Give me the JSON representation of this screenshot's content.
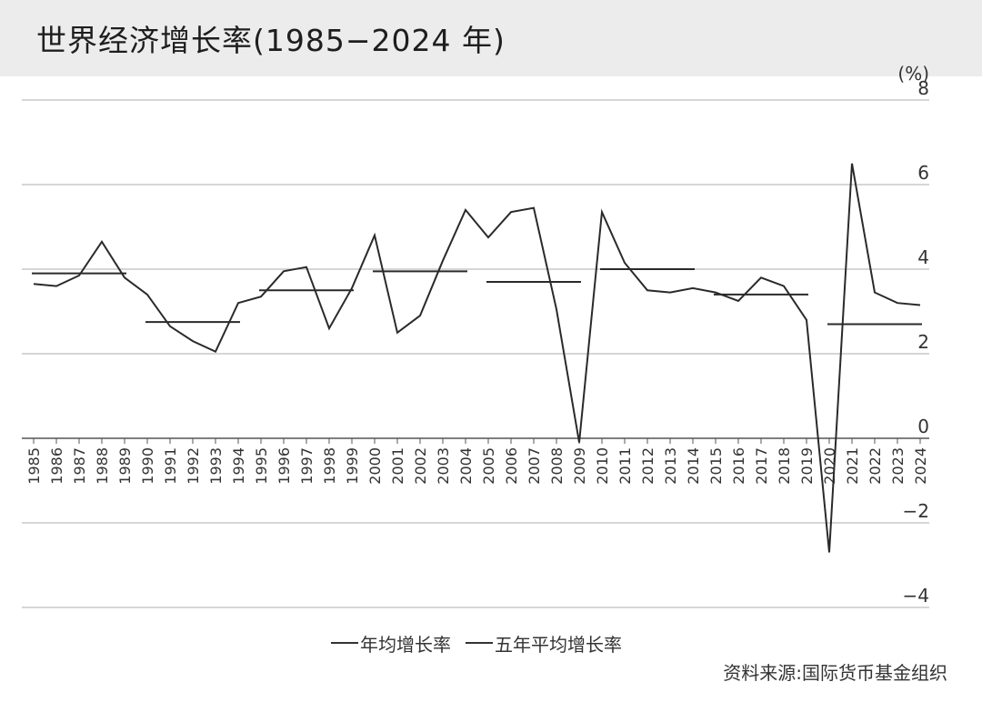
{
  "title": "世界经济增长率(1985−2024 年)",
  "unit": "(%)",
  "source": "资料来源:国际货币基金组织",
  "colors": {
    "line": "#2a2a2a",
    "grid": "#bdbdbd",
    "axis": "#555555"
  },
  "chart_data": {
    "type": "line",
    "title": "世界经济增长率(1985−2024 年)",
    "xlabel": "",
    "ylabel": "(%)",
    "ylim": [
      -4,
      8
    ],
    "yticks": [
      "8",
      "6",
      "4",
      "2",
      "0",
      "−2",
      "−4"
    ],
    "grid": true,
    "legend_position": "bottom",
    "categories": [
      "1985",
      "1986",
      "1987",
      "1988",
      "1989",
      "1990",
      "1991",
      "1992",
      "1993",
      "1994",
      "1995",
      "1996",
      "1997",
      "1998",
      "1999",
      "2000",
      "2001",
      "2002",
      "2003",
      "2004",
      "2005",
      "2006",
      "2007",
      "2008",
      "2009",
      "2010",
      "2011",
      "2012",
      "2013",
      "2014",
      "2015",
      "2016",
      "2017",
      "2018",
      "2019",
      "2020",
      "2021",
      "2022",
      "2023",
      "2024"
    ],
    "series": [
      {
        "name": "年均增长率",
        "values": [
          3.65,
          3.6,
          3.85,
          4.65,
          3.8,
          3.4,
          2.65,
          2.3,
          2.05,
          3.2,
          3.35,
          3.95,
          4.05,
          2.6,
          3.55,
          4.8,
          2.5,
          2.9,
          4.2,
          5.4,
          4.75,
          5.35,
          5.45,
          3.05,
          -0.1,
          5.35,
          4.15,
          3.5,
          3.45,
          3.55,
          3.45,
          3.25,
          3.8,
          3.6,
          2.8,
          -2.7,
          6.5,
          3.45,
          3.2,
          3.15
        ]
      },
      {
        "name": "五年平均增长率",
        "segments": [
          {
            "from": "1985",
            "to": "1989",
            "value": 3.9
          },
          {
            "from": "1990",
            "to": "1994",
            "value": 2.75
          },
          {
            "from": "1995",
            "to": "1999",
            "value": 3.5
          },
          {
            "from": "2000",
            "to": "2004",
            "value": 3.95
          },
          {
            "from": "2005",
            "to": "2009",
            "value": 3.7
          },
          {
            "from": "2010",
            "to": "2014",
            "value": 4.0
          },
          {
            "from": "2015",
            "to": "2019",
            "value": 3.4
          },
          {
            "from": "2020",
            "to": "2024",
            "value": 2.7
          }
        ]
      }
    ]
  }
}
